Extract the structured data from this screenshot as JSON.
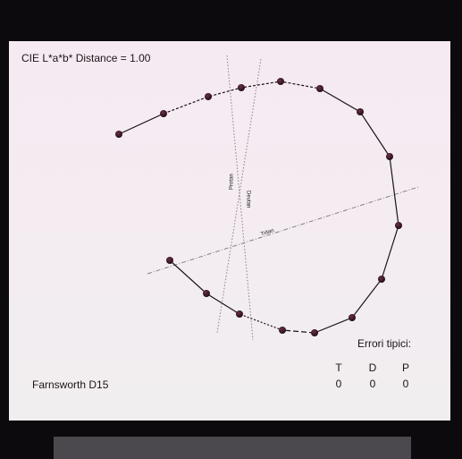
{
  "header": {
    "title": "CIE L*a*b* Distance = 1.00"
  },
  "footer": {
    "test_name": "Farnsworth D15"
  },
  "errors": {
    "title": "Errori tipici:",
    "columns": [
      "T",
      "D",
      "P"
    ],
    "counts": [
      "0",
      "0",
      "0"
    ]
  },
  "confusion_lines": {
    "protan": "Protan",
    "deutan": "Deutan",
    "tritan": "Tritan"
  }
}
